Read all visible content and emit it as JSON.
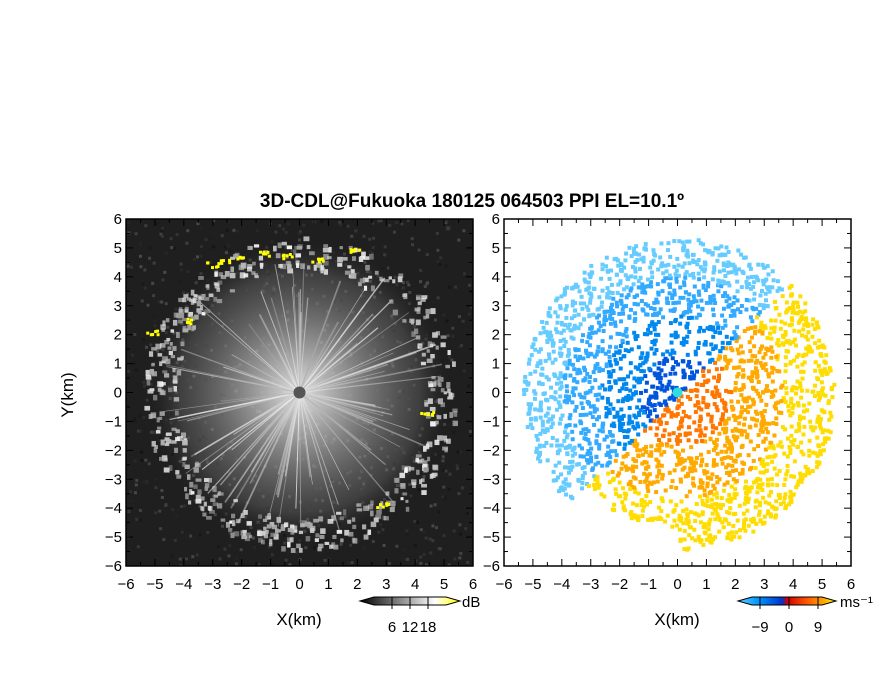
{
  "chart_data": [
    {
      "type": "heatmap",
      "title": "3D-CDL@Fukuoka 180125 064503 PPI EL=10.1º",
      "xlabel": "X(km)",
      "ylabel": "Y(km)",
      "xlim": [
        -6,
        6
      ],
      "ylim": [
        -6,
        6
      ],
      "xticks": [
        "−6",
        "−5",
        "−4",
        "−3",
        "−2",
        "−1",
        "0",
        "1",
        "2",
        "3",
        "4",
        "5",
        "6"
      ],
      "yticks": [
        "−6",
        "−5",
        "−4",
        "−3",
        "−2",
        "−1",
        "0",
        "1",
        "2",
        "3",
        "4",
        "5",
        "6"
      ],
      "colorbar": {
        "unit": "dB",
        "ticks": [
          "6",
          "12",
          "18"
        ],
        "range": [
          0,
          24
        ],
        "colors": [
          "#000000",
          "#ffffff",
          "#ffff00"
        ]
      },
      "echo_ring_radius_km": 5,
      "highlight_points": [
        [
          -3.0,
          4.45
        ],
        [
          -2.6,
          4.6
        ],
        [
          -2.0,
          4.7
        ],
        [
          -1.2,
          4.85
        ],
        [
          -0.4,
          4.75
        ],
        [
          0.6,
          4.6
        ],
        [
          1.9,
          4.95
        ],
        [
          -5.1,
          2.1
        ],
        [
          -3.7,
          2.5
        ],
        [
          4.4,
          -0.7
        ],
        [
          2.8,
          -3.85
        ]
      ]
    },
    {
      "type": "heatmap",
      "xlabel": "X(km)",
      "xlim": [
        -6,
        6
      ],
      "ylim": [
        -6,
        6
      ],
      "xticks": [
        "−6",
        "−5",
        "−4",
        "−3",
        "−2",
        "−1",
        "0",
        "1",
        "2",
        "3",
        "4",
        "5",
        "6"
      ],
      "yticks": [
        "−6",
        "−5",
        "−4",
        "−3",
        "−2",
        "−1",
        "0",
        "1",
        "2",
        "3",
        "4",
        "5",
        "6"
      ],
      "colorbar": {
        "unit": "ms⁻¹",
        "ticks": [
          "−9",
          "0",
          "9"
        ],
        "range": [
          -9,
          9
        ],
        "colors": [
          "#00aaff",
          "#0033cc",
          "#cc0000",
          "#ff6600",
          "#ffff00"
        ]
      },
      "sign_boundary_direction": "northeast–southwest"
    }
  ]
}
